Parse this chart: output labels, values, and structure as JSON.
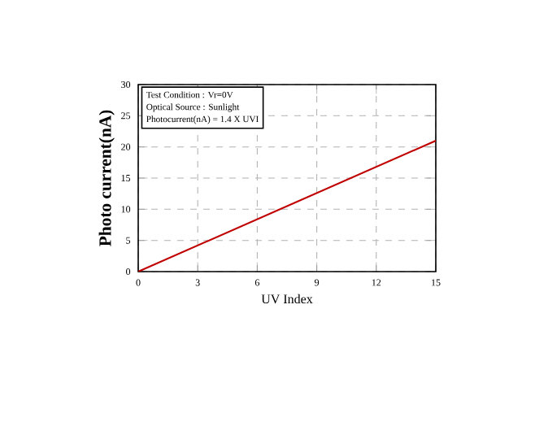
{
  "chart_data": {
    "type": "line",
    "xlabel": "UV Index",
    "ylabel": "Photo current(nA)",
    "x": [
      0,
      15
    ],
    "series": [
      {
        "color": "#c00000",
        "values": [
          0,
          21
        ]
      }
    ],
    "xlim": [
      0,
      15
    ],
    "xticks": [
      0,
      3,
      6,
      9,
      12,
      15
    ],
    "ylim": [
      0,
      30
    ],
    "yticks": [
      0,
      5,
      10,
      15,
      20,
      25,
      30
    ],
    "grid": true,
    "marker": "none",
    "line_style": "solid",
    "annotations": [
      "Test Condition : Vr=0V",
      "Optical Source : Sunlight",
      "Photocurrent(nA) = 1.4 X UVI"
    ]
  }
}
